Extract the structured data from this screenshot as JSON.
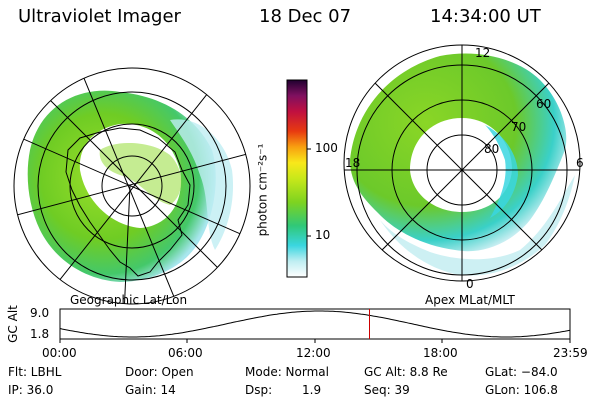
{
  "header": {
    "instrument": "Ultraviolet Imager",
    "date": "18 Dec 07",
    "time": "14:34:00 UT"
  },
  "colorbar": {
    "unit_label": "photon cm⁻²s⁻¹",
    "tick_100": "100",
    "tick_10": "10"
  },
  "left_map": {
    "caption": "Geographic Lat/Lon"
  },
  "right_map": {
    "caption": "Apex MLat/MLT",
    "lat_labels": [
      "60",
      "70",
      "80"
    ],
    "mlt_labels": {
      "top": "12",
      "left": "18",
      "right": "6",
      "bottom": "0"
    }
  },
  "altitude_panel": {
    "ylabel": "GC Alt",
    "y_top": "9.0",
    "y_bottom": "1.8",
    "x_ticks": [
      "00:00",
      "06:00",
      "12:00",
      "18:00",
      "23:59"
    ],
    "marker_time_hours": 14.567
  },
  "info": {
    "filter": "Flt: LBHL",
    "ip": "IP: 36.0",
    "door": "Door: Open",
    "gain": "Gain: 14",
    "mode": "Mode: Normal",
    "dsp_label": "Dsp:",
    "dsp_value": "1.9",
    "gc_alt": "GC Alt: 8.8 Re",
    "seq": "Seq: 39",
    "glat": "GLat: −84.0",
    "glon": "GLon: 106.8"
  },
  "colors": {
    "marker": "#cc0000",
    "green": "#7ed320",
    "cyan": "#3ad6e0"
  }
}
